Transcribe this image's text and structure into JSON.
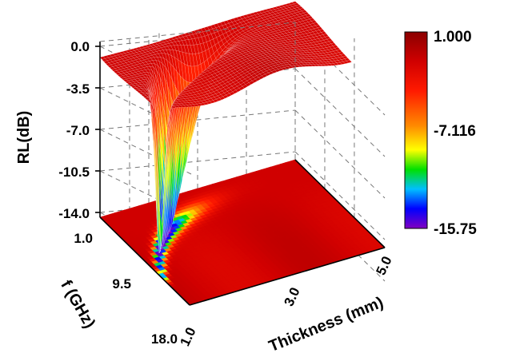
{
  "chart_data": {
    "type": "surface3d",
    "zlabel": "RL(dB)",
    "ylabel": "f (GHz)",
    "xlabel": "Thickness (mm)",
    "z_ticks": [
      "0.0",
      "-3.5",
      "-7.0",
      "-10.5",
      "-14.0"
    ],
    "f_ticks": [
      "1.0",
      "9.5",
      "18.0"
    ],
    "thickness_ticks": [
      "1.0",
      "3.0",
      "5.0"
    ],
    "zlim": [
      -15.75,
      1.0
    ],
    "flim": [
      1.0,
      18.0
    ],
    "thickness_lim": [
      1.0,
      5.0
    ],
    "colorbar": {
      "labels": [
        "1.000",
        "-7.116",
        "-15.75"
      ],
      "values": [
        1.0,
        -7.116,
        -15.75
      ],
      "colors": [
        "#8b0000",
        "#ff0000",
        "#ff8c00",
        "#ffff00",
        "#00ff00",
        "#00bfff",
        "#0000ff",
        "#8000c0"
      ]
    },
    "surface": {
      "description_values": {
        "min_rl": -15.75,
        "min_at_thickness": 1.6,
        "min_at_f": 15.5,
        "baseline_rl": -1.5
      }
    },
    "grid": true
  }
}
